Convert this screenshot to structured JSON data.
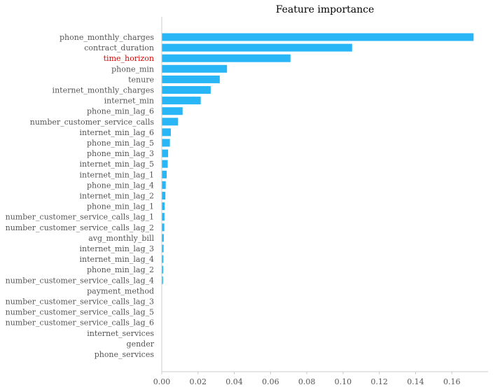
{
  "chart_data": {
    "type": "bar",
    "orientation": "horizontal",
    "title": "Feature importance",
    "xlabel": "",
    "ylabel": "",
    "xlim": [
      0,
      0.18
    ],
    "xticks": [
      "0.00",
      "0.02",
      "0.04",
      "0.06",
      "0.08",
      "0.10",
      "0.12",
      "0.14",
      "0.16"
    ],
    "grid": false,
    "bar_color": "#29b6f6",
    "label_color": "#555555",
    "highlight_color": "#e00000",
    "highlight_category": "time_horizon",
    "categories": [
      "phone_monthly_charges",
      "contract_duration",
      "time_horizon",
      "phone_min",
      "tenure",
      "internet_monthly_charges",
      "internet_min",
      "phone_min_lag_6",
      "number_customer_service_calls",
      "internet_min_lag_6",
      "phone_min_lag_5",
      "phone_min_lag_3",
      "internet_min_lag_5",
      "internet_min_lag_1",
      "phone_min_lag_4",
      "internet_min_lag_2",
      "phone_min_lag_1",
      "number_customer_service_calls_lag_1",
      "number_customer_service_calls_lag_2",
      "avg_monthly_bill",
      "internet_min_lag_3",
      "internet_min_lag_4",
      "phone_min_lag_2",
      "number_customer_service_calls_lag_4",
      "payment_method",
      "number_customer_service_calls_lag_3",
      "number_customer_service_calls_lag_5",
      "number_customer_service_calls_lag_6",
      "internet_services",
      "gender",
      "phone_services"
    ],
    "values": [
      0.172,
      0.105,
      0.071,
      0.036,
      0.032,
      0.027,
      0.0215,
      0.0115,
      0.009,
      0.005,
      0.0045,
      0.0035,
      0.0033,
      0.0027,
      0.0022,
      0.002,
      0.0016,
      0.0015,
      0.0014,
      0.0011,
      0.001,
      0.0009,
      0.0008,
      0.0007,
      0.0,
      0.0,
      0.0,
      0.0,
      0.0,
      0.0,
      0.0
    ]
  }
}
